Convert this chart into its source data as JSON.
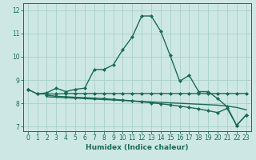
{
  "title": "",
  "xlabel": "Humidex (Indice chaleur)",
  "ylabel": "",
  "bg_color": "#cde8e4",
  "grid_color": "#a8cfc9",
  "line_color": "#1a6b5a",
  "xlim": [
    -0.5,
    23.5
  ],
  "ylim": [
    6.8,
    12.3
  ],
  "yticks": [
    7,
    8,
    9,
    10,
    11,
    12
  ],
  "xticks": [
    0,
    1,
    2,
    3,
    4,
    5,
    6,
    7,
    8,
    9,
    10,
    11,
    12,
    13,
    14,
    15,
    16,
    17,
    18,
    19,
    20,
    21,
    22,
    23
  ],
  "lines": [
    {
      "x": [
        0,
        1,
        2,
        3,
        4,
        5,
        6,
        7,
        8,
        9,
        10,
        11,
        12,
        13,
        14,
        15,
        16,
        17,
        18,
        19,
        20,
        21,
        22,
        23
      ],
      "y": [
        8.6,
        8.4,
        8.45,
        8.65,
        8.5,
        8.6,
        8.65,
        9.45,
        9.45,
        9.65,
        10.3,
        10.85,
        11.75,
        11.75,
        11.1,
        10.05,
        8.95,
        9.2,
        8.5,
        8.5,
        8.2,
        7.85,
        7.05,
        7.5
      ],
      "marker": "D",
      "markersize": 2.0,
      "linewidth": 1.0
    },
    {
      "x": [
        0,
        1,
        2,
        3,
        4,
        5,
        6,
        7,
        8,
        9,
        10,
        11,
        12,
        13,
        14,
        15,
        16,
        17,
        18,
        19,
        20,
        21,
        22,
        23
      ],
      "y": [
        8.6,
        8.4,
        8.4,
        8.4,
        8.42,
        8.42,
        8.42,
        8.42,
        8.42,
        8.42,
        8.42,
        8.42,
        8.42,
        8.42,
        8.42,
        8.42,
        8.42,
        8.42,
        8.42,
        8.42,
        8.42,
        8.42,
        8.42,
        8.42
      ],
      "marker": "D",
      "markersize": 2.0,
      "linewidth": 1.0
    },
    {
      "x": [
        2,
        3,
        4,
        5,
        6,
        7,
        8,
        9,
        10,
        11,
        12,
        13,
        14,
        15,
        16,
        17,
        18,
        19,
        20,
        21,
        22,
        23
      ],
      "y": [
        8.28,
        8.26,
        8.24,
        8.22,
        8.2,
        8.18,
        8.16,
        8.14,
        8.12,
        8.1,
        8.08,
        8.06,
        8.04,
        8.02,
        8.0,
        7.98,
        7.96,
        7.94,
        7.92,
        7.88,
        7.82,
        7.72
      ],
      "marker": null,
      "markersize": 0,
      "linewidth": 1.0
    },
    {
      "x": [
        2,
        3,
        4,
        5,
        6,
        7,
        8,
        9,
        10,
        11,
        12,
        13,
        14,
        15,
        16,
        17,
        18,
        19,
        20,
        21,
        22,
        23
      ],
      "y": [
        8.35,
        8.3,
        8.28,
        8.26,
        8.24,
        8.22,
        8.2,
        8.17,
        8.14,
        8.1,
        8.06,
        8.02,
        7.98,
        7.93,
        7.88,
        7.82,
        7.76,
        7.68,
        7.6,
        7.78,
        7.05,
        7.5
      ],
      "marker": "D",
      "markersize": 2.0,
      "linewidth": 1.0
    }
  ]
}
